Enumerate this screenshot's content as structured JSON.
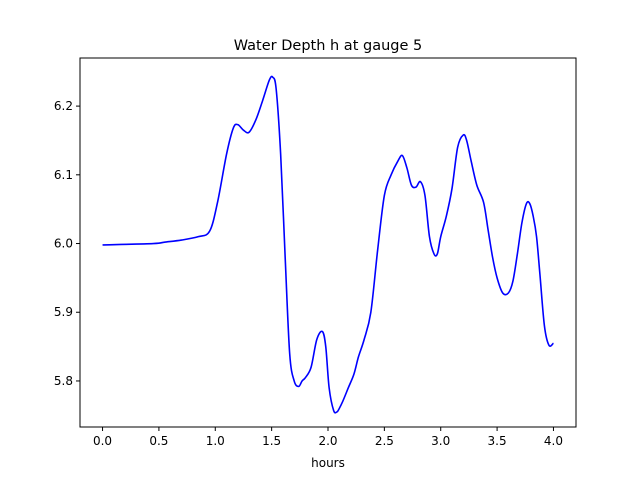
{
  "chart_data": {
    "type": "line",
    "title": "Water Depth h at gauge 5",
    "xlabel": "hours",
    "ylabel": "",
    "xlim": [
      -0.2,
      4.2
    ],
    "ylim": [
      5.733,
      6.27
    ],
    "x_ticks": [
      0.0,
      0.5,
      1.0,
      1.5,
      2.0,
      2.5,
      3.0,
      3.5,
      4.0
    ],
    "x_tick_labels": [
      "0.0",
      "0.5",
      "1.0",
      "1.5",
      "2.0",
      "2.5",
      "3.0",
      "3.5",
      "4.0"
    ],
    "y_ticks": [
      5.8,
      5.9,
      6.0,
      6.1,
      6.2
    ],
    "y_tick_labels": [
      "5.8",
      "5.9",
      "6.0",
      "6.1",
      "6.2"
    ],
    "grid": false,
    "series": [
      {
        "color": "#0000ff",
        "x": [
          0.0,
          0.45,
          0.55,
          0.7,
          0.85,
          0.95,
          1.02,
          1.1,
          1.16,
          1.2,
          1.25,
          1.3,
          1.36,
          1.42,
          1.48,
          1.51,
          1.54,
          1.58,
          1.62,
          1.66,
          1.7,
          1.74,
          1.77,
          1.8,
          1.85,
          1.9,
          1.95,
          1.98,
          2.01,
          2.05,
          2.08,
          2.1,
          2.13,
          2.18,
          2.23,
          2.27,
          2.32,
          2.38,
          2.44,
          2.5,
          2.56,
          2.62,
          2.66,
          2.7,
          2.74,
          2.78,
          2.82,
          2.86,
          2.9,
          2.94,
          2.97,
          3.0,
          3.05,
          3.1,
          3.15,
          3.2,
          3.23,
          3.27,
          3.32,
          3.38,
          3.42,
          3.46,
          3.5,
          3.55,
          3.6,
          3.64,
          3.68,
          3.72,
          3.76,
          3.79,
          3.82,
          3.85,
          3.88,
          3.92,
          3.96,
          4.0
        ],
        "y": [
          5.998,
          6.0,
          6.002,
          6.005,
          6.01,
          6.018,
          6.06,
          6.13,
          6.168,
          6.173,
          6.165,
          6.162,
          6.18,
          6.208,
          6.238,
          6.242,
          6.225,
          6.13,
          5.98,
          5.84,
          5.8,
          5.792,
          5.8,
          5.805,
          5.82,
          5.86,
          5.872,
          5.85,
          5.79,
          5.757,
          5.755,
          5.76,
          5.77,
          5.79,
          5.81,
          5.835,
          5.86,
          5.9,
          5.99,
          6.07,
          6.1,
          6.12,
          6.128,
          6.11,
          6.085,
          6.082,
          6.09,
          6.07,
          6.01,
          5.985,
          5.985,
          6.01,
          6.04,
          6.08,
          6.14,
          6.158,
          6.15,
          6.12,
          6.085,
          6.06,
          6.02,
          5.98,
          5.95,
          5.928,
          5.928,
          5.945,
          5.985,
          6.03,
          6.058,
          6.058,
          6.04,
          6.01,
          5.955,
          5.88,
          5.852,
          5.855
        ]
      }
    ]
  }
}
